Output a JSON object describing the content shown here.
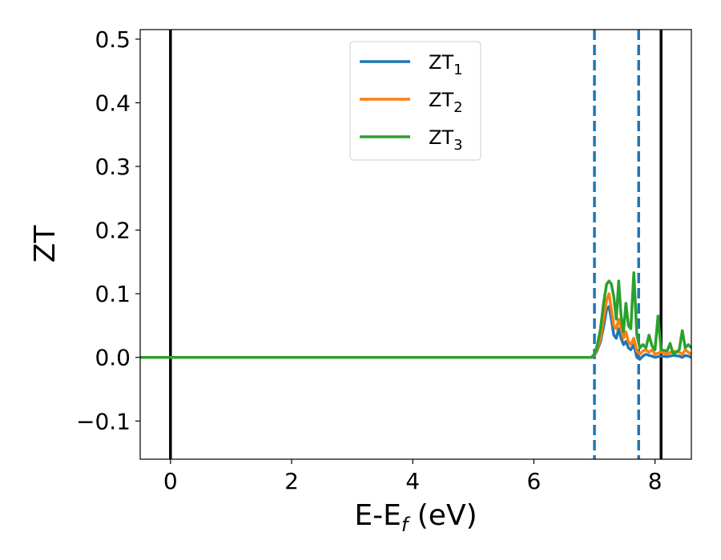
{
  "chart_data": {
    "type": "line",
    "xlabel": "E-E",
    "xlabel_sub": "f",
    "xlabel_unit": " (eV)",
    "ylabel": "ZT",
    "xlim": [
      -0.5,
      8.6
    ],
    "ylim": [
      -0.16,
      0.515
    ],
    "xticks": [
      0,
      2,
      4,
      6,
      8
    ],
    "yticks": [
      -0.1,
      0.0,
      0.1,
      0.2,
      0.3,
      0.4,
      0.5
    ],
    "ytick_labels": [
      "−0.1",
      "0.0",
      "0.1",
      "0.2",
      "0.3",
      "0.4",
      "0.5"
    ],
    "grid": false,
    "legend_position": "top-center",
    "vlines": [
      {
        "x": 0.0,
        "style": "solid",
        "color": "#000000"
      },
      {
        "x": 8.1,
        "style": "solid",
        "color": "#000000"
      },
      {
        "x": 7.0,
        "style": "dashed",
        "color": "#1f77b4"
      },
      {
        "x": 7.73,
        "style": "dashed",
        "color": "#1f77b4"
      }
    ],
    "series": [
      {
        "name": "ZT",
        "name_sub": "1",
        "color": "#1f77b4",
        "points": [
          [
            -0.5,
            0
          ],
          [
            6.95,
            0
          ],
          [
            7.0,
            0.003
          ],
          [
            7.05,
            0.012
          ],
          [
            7.1,
            0.025
          ],
          [
            7.15,
            0.048
          ],
          [
            7.2,
            0.075
          ],
          [
            7.24,
            0.08
          ],
          [
            7.28,
            0.06
          ],
          [
            7.32,
            0.035
          ],
          [
            7.36,
            0.03
          ],
          [
            7.4,
            0.045
          ],
          [
            7.44,
            0.03
          ],
          [
            7.48,
            0.02
          ],
          [
            7.52,
            0.025
          ],
          [
            7.56,
            0.015
          ],
          [
            7.6,
            0.012
          ],
          [
            7.65,
            0.02
          ],
          [
            7.7,
            0.0
          ],
          [
            7.75,
            -0.003
          ],
          [
            7.8,
            0.002
          ],
          [
            7.85,
            0.005
          ],
          [
            7.9,
            0.003
          ],
          [
            7.95,
            0.002
          ],
          [
            8.0,
            0.0
          ],
          [
            8.1,
            0.002
          ],
          [
            8.2,
            0.001
          ],
          [
            8.3,
            0.003
          ],
          [
            8.4,
            0.002
          ],
          [
            8.45,
            0.0
          ],
          [
            8.5,
            0.003
          ],
          [
            8.55,
            0.002
          ],
          [
            8.6,
            0.0
          ]
        ]
      },
      {
        "name": "ZT",
        "name_sub": "2",
        "color": "#ff7f0e",
        "points": [
          [
            -0.5,
            0
          ],
          [
            6.95,
            0
          ],
          [
            7.0,
            0.004
          ],
          [
            7.05,
            0.015
          ],
          [
            7.1,
            0.03
          ],
          [
            7.15,
            0.06
          ],
          [
            7.2,
            0.09
          ],
          [
            7.24,
            0.1
          ],
          [
            7.28,
            0.075
          ],
          [
            7.32,
            0.05
          ],
          [
            7.36,
            0.045
          ],
          [
            7.4,
            0.06
          ],
          [
            7.44,
            0.045
          ],
          [
            7.48,
            0.03
          ],
          [
            7.52,
            0.04
          ],
          [
            7.56,
            0.025
          ],
          [
            7.6,
            0.02
          ],
          [
            7.65,
            0.03
          ],
          [
            7.7,
            0.01
          ],
          [
            7.75,
            0.005
          ],
          [
            7.8,
            0.01
          ],
          [
            7.85,
            0.012
          ],
          [
            7.9,
            0.008
          ],
          [
            7.95,
            0.012
          ],
          [
            8.0,
            0.005
          ],
          [
            8.1,
            0.008
          ],
          [
            8.2,
            0.005
          ],
          [
            8.3,
            0.01
          ],
          [
            8.4,
            0.008
          ],
          [
            8.45,
            0.005
          ],
          [
            8.5,
            0.012
          ],
          [
            8.55,
            0.008
          ],
          [
            8.6,
            0.005
          ]
        ]
      },
      {
        "name": "ZT",
        "name_sub": "3",
        "color": "#2ca02c",
        "points": [
          [
            -0.5,
            0
          ],
          [
            6.95,
            0
          ],
          [
            7.0,
            0.005
          ],
          [
            7.05,
            0.02
          ],
          [
            7.1,
            0.045
          ],
          [
            7.15,
            0.085
          ],
          [
            7.2,
            0.115
          ],
          [
            7.24,
            0.12
          ],
          [
            7.28,
            0.115
          ],
          [
            7.32,
            0.095
          ],
          [
            7.36,
            0.06
          ],
          [
            7.4,
            0.12
          ],
          [
            7.44,
            0.065
          ],
          [
            7.48,
            0.04
          ],
          [
            7.52,
            0.085
          ],
          [
            7.56,
            0.05
          ],
          [
            7.6,
            0.045
          ],
          [
            7.65,
            0.133
          ],
          [
            7.7,
            0.035
          ],
          [
            7.75,
            0.015
          ],
          [
            7.8,
            0.02
          ],
          [
            7.85,
            0.015
          ],
          [
            7.9,
            0.035
          ],
          [
            7.95,
            0.018
          ],
          [
            8.0,
            0.012
          ],
          [
            8.05,
            0.065
          ],
          [
            8.1,
            0.012
          ],
          [
            8.2,
            0.01
          ],
          [
            8.25,
            0.022
          ],
          [
            8.3,
            0.005
          ],
          [
            8.35,
            0.008
          ],
          [
            8.4,
            0.012
          ],
          [
            8.45,
            0.042
          ],
          [
            8.5,
            0.015
          ],
          [
            8.55,
            0.02
          ],
          [
            8.6,
            0.015
          ]
        ]
      }
    ]
  }
}
